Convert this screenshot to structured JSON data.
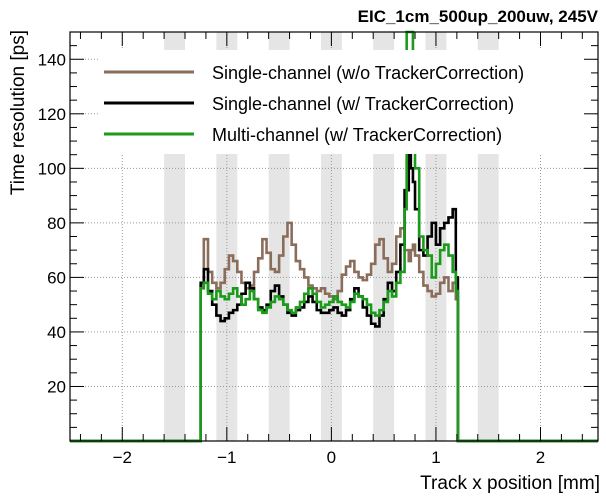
{
  "chart_data": {
    "type": "line",
    "title": "EIC_1cm_500up_200uw, 245V",
    "xlabel": "Track x position [mm]",
    "ylabel": "Time resolution [ps]",
    "xlim": [
      -2.5,
      2.55
    ],
    "ylim": [
      0,
      150
    ],
    "x_ticks": [
      -2,
      -1,
      0,
      1,
      2
    ],
    "y_ticks": [
      20,
      40,
      60,
      80,
      100,
      120,
      140
    ],
    "grid": true,
    "legend_position": "top-right",
    "shaded_strips": [
      [
        -1.6,
        -1.4
      ],
      [
        -1.1,
        -0.9
      ],
      [
        -0.6,
        -0.4
      ],
      [
        -0.1,
        0.1
      ],
      [
        0.4,
        0.6
      ],
      [
        0.9,
        1.1
      ],
      [
        1.4,
        1.6
      ]
    ],
    "series": [
      {
        "name": "Single-channel (w/o TrackerCorrection)",
        "color": "#8b6d5c",
        "x": [
          -1.25,
          -1.22,
          -1.18,
          -1.14,
          -1.1,
          -1.06,
          -1.02,
          -0.98,
          -0.94,
          -0.9,
          -0.86,
          -0.82,
          -0.78,
          -0.74,
          -0.7,
          -0.66,
          -0.62,
          -0.58,
          -0.54,
          -0.5,
          -0.46,
          -0.42,
          -0.38,
          -0.34,
          -0.3,
          -0.26,
          -0.22,
          -0.18,
          -0.14,
          -0.1,
          -0.06,
          -0.02,
          0.02,
          0.06,
          0.1,
          0.14,
          0.18,
          0.22,
          0.26,
          0.3,
          0.34,
          0.38,
          0.42,
          0.46,
          0.5,
          0.54,
          0.58,
          0.62,
          0.66,
          0.7,
          0.74,
          0.76,
          0.78,
          0.8,
          0.84,
          0.88,
          0.92,
          0.96,
          1.0,
          1.04,
          1.08,
          1.12,
          1.16,
          1.19
        ],
        "y": [
          57,
          74,
          62,
          58,
          56,
          58,
          63,
          68,
          66,
          62,
          58,
          56,
          57,
          62,
          67,
          74,
          69,
          63,
          62,
          68,
          75,
          80,
          72,
          66,
          63,
          60,
          57,
          56,
          55,
          56,
          54,
          53,
          52,
          55,
          61,
          64,
          66,
          62,
          60,
          59,
          61,
          65,
          72,
          74,
          67,
          62,
          65,
          75,
          78,
          70,
          66,
          70,
          72,
          68,
          62,
          57,
          55,
          53,
          54,
          58,
          60,
          55,
          58,
          52
        ]
      },
      {
        "name": "Single-channel (w/ TrackerCorrection)",
        "color": "#000000",
        "x": [
          -1.25,
          -1.22,
          -1.18,
          -1.14,
          -1.1,
          -1.06,
          -1.02,
          -0.98,
          -0.94,
          -0.9,
          -0.86,
          -0.82,
          -0.78,
          -0.74,
          -0.7,
          -0.66,
          -0.62,
          -0.58,
          -0.54,
          -0.5,
          -0.46,
          -0.42,
          -0.38,
          -0.34,
          -0.3,
          -0.26,
          -0.22,
          -0.18,
          -0.14,
          -0.1,
          -0.06,
          -0.02,
          0.02,
          0.06,
          0.1,
          0.14,
          0.18,
          0.22,
          0.26,
          0.3,
          0.34,
          0.38,
          0.42,
          0.46,
          0.5,
          0.54,
          0.58,
          0.62,
          0.66,
          0.7,
          0.74,
          0.76,
          0.78,
          0.8,
          0.84,
          0.88,
          0.92,
          0.96,
          1.0,
          1.04,
          1.08,
          1.12,
          1.16,
          1.19
        ],
        "y": [
          58,
          63,
          55,
          50,
          46,
          44,
          45,
          47,
          48,
          50,
          54,
          58,
          56,
          52,
          49,
          48,
          50,
          55,
          57,
          53,
          50,
          47,
          46,
          48,
          49,
          51,
          53,
          51,
          48,
          47,
          47,
          48,
          49,
          47,
          46,
          48,
          52,
          56,
          53,
          49,
          46,
          43,
          42,
          46,
          52,
          58,
          55,
          62,
          72,
          92,
          105,
          100,
          95,
          85,
          70,
          68,
          75,
          80,
          72,
          78,
          80,
          82,
          85,
          60
        ]
      },
      {
        "name": "Multi-channel (w/ TrackerCorrection)",
        "color": "#1a9b1a",
        "x": [
          -1.25,
          -1.22,
          -1.18,
          -1.14,
          -1.1,
          -1.06,
          -1.02,
          -0.98,
          -0.94,
          -0.9,
          -0.86,
          -0.82,
          -0.78,
          -0.74,
          -0.7,
          -0.66,
          -0.62,
          -0.58,
          -0.54,
          -0.5,
          -0.46,
          -0.42,
          -0.38,
          -0.34,
          -0.3,
          -0.26,
          -0.22,
          -0.18,
          -0.14,
          -0.1,
          -0.06,
          -0.02,
          0.02,
          0.06,
          0.1,
          0.14,
          0.18,
          0.22,
          0.26,
          0.3,
          0.34,
          0.38,
          0.42,
          0.46,
          0.5,
          0.54,
          0.58,
          0.62,
          0.66,
          0.7,
          0.72,
          0.74,
          0.76,
          0.78,
          0.8,
          0.84,
          0.88,
          0.92,
          0.96,
          1.0,
          1.04,
          1.08,
          1.12,
          1.16,
          1.19
        ],
        "y": [
          56,
          58,
          54,
          52,
          55,
          53,
          52,
          54,
          56,
          53,
          50,
          52,
          55,
          52,
          48,
          47,
          49,
          51,
          53,
          52,
          50,
          48,
          47,
          49,
          51,
          54,
          56,
          54,
          51,
          49,
          50,
          51,
          53,
          51,
          50,
          49,
          51,
          54,
          53,
          52,
          50,
          47,
          46,
          48,
          51,
          55,
          53,
          58,
          62,
          85,
          150,
          150,
          150,
          120,
          100,
          75,
          70,
          68,
          60,
          65,
          70,
          72,
          68,
          62,
          55
        ]
      }
    ]
  }
}
